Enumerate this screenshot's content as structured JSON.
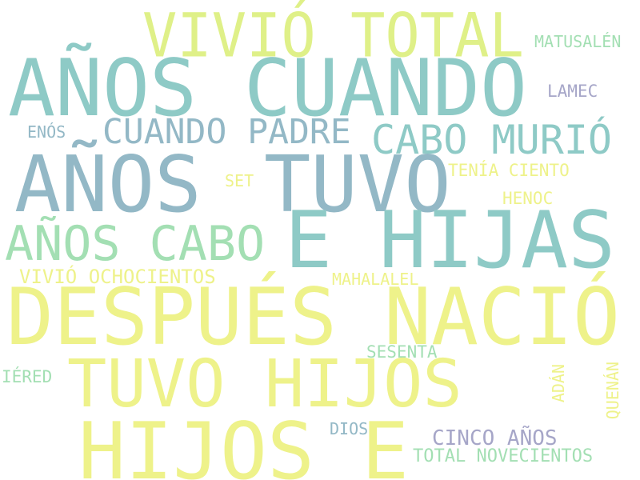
{
  "colors": {
    "teal": "#8ecac6",
    "slate": "#93b8c6",
    "yellow": "#eef28a",
    "lime": "#dff088",
    "mint": "#a3dfb3",
    "lavender": "#a6a6c8"
  },
  "words": [
    {
      "text": "VIVIÓ TOTAL",
      "color": "lime"
    },
    {
      "text": "MATUSALÉN",
      "color": "mint"
    },
    {
      "text": "AÑOS CUANDO",
      "color": "teal"
    },
    {
      "text": "LAMEC",
      "color": "lavender"
    },
    {
      "text": "ENÓS",
      "color": "slate"
    },
    {
      "text": "CUANDO PADRE",
      "color": "slate"
    },
    {
      "text": "CABO MURIÓ",
      "color": "teal"
    },
    {
      "text": "AÑOS",
      "color": "slate"
    },
    {
      "text": "TUVO",
      "color": "slate"
    },
    {
      "text": "SET",
      "color": "yellow"
    },
    {
      "text": "TENÍA CIENTO",
      "color": "yellow"
    },
    {
      "text": "HENOC",
      "color": "yellow"
    },
    {
      "text": "AÑOS CABO",
      "color": "mint"
    },
    {
      "text": "E HIJAS",
      "color": "teal"
    },
    {
      "text": "VIVIÓ OCHOCIENTOS",
      "color": "yellow"
    },
    {
      "text": "MAHALALEL",
      "color": "yellow"
    },
    {
      "text": "DESPUÉS NACIÓ",
      "color": "yellow"
    },
    {
      "text": "SESENTA",
      "color": "mint"
    },
    {
      "text": "IÉRED",
      "color": "mint"
    },
    {
      "text": "TUVO HIJOS",
      "color": "yellow"
    },
    {
      "text": "ADÁN",
      "color": "yellow"
    },
    {
      "text": "QUENÁN",
      "color": "yellow"
    },
    {
      "text": "DIOS",
      "color": "slate"
    },
    {
      "text": "HIJOS E",
      "color": "yellow"
    },
    {
      "text": "CINCO AÑOS",
      "color": "lavender"
    },
    {
      "text": "TOTAL NOVECIENTOS",
      "color": "mint"
    }
  ]
}
